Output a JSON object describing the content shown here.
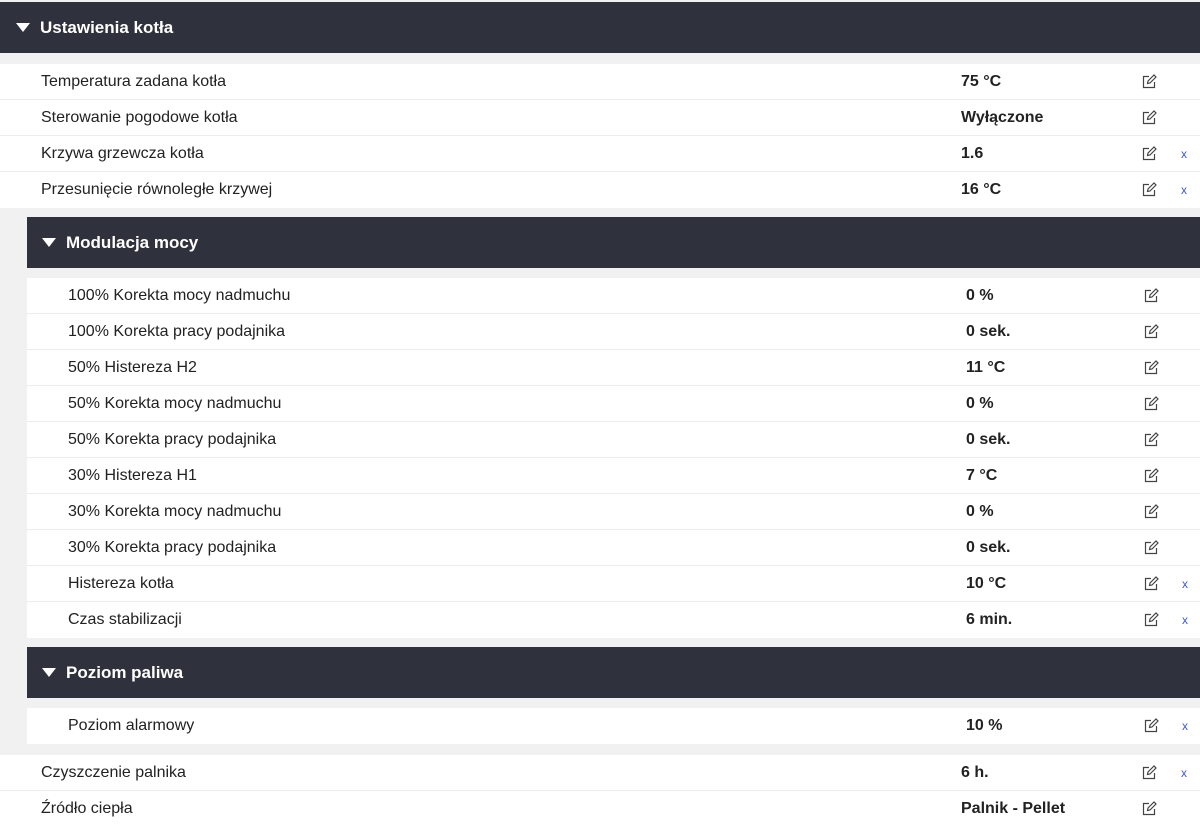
{
  "main_section": {
    "title": "Ustawienia kotła",
    "rows_top": [
      {
        "label": "Temperatura zadana kotła",
        "value": "75 °C",
        "reset": ""
      },
      {
        "label": "Sterowanie pogodowe kotła",
        "value": "Wyłączone",
        "reset": ""
      },
      {
        "label": "Krzywa grzewcza kotła",
        "value": "1.6",
        "reset": "x"
      },
      {
        "label": "Przesunięcie równoległe krzywej",
        "value": "16 °C",
        "reset": "x"
      }
    ],
    "rows_bottom": [
      {
        "label": "Czyszczenie palnika",
        "value": "6 h.",
        "reset": "x"
      },
      {
        "label": "Źródło ciepła",
        "value": "Palnik - Pellet",
        "reset": ""
      }
    ]
  },
  "modulation_section": {
    "title": "Modulacja mocy",
    "rows": [
      {
        "label": "100% Korekta mocy nadmuchu",
        "value": "0 %",
        "reset": ""
      },
      {
        "label": "100% Korekta pracy podajnika",
        "value": "0 sek.",
        "reset": ""
      },
      {
        "label": "50% Histereza H2",
        "value": "11 °C",
        "reset": ""
      },
      {
        "label": "50% Korekta mocy nadmuchu",
        "value": "0 %",
        "reset": ""
      },
      {
        "label": "50% Korekta pracy podajnika",
        "value": "0 sek.",
        "reset": ""
      },
      {
        "label": "30% Histereza H1",
        "value": "7 °C",
        "reset": ""
      },
      {
        "label": "30% Korekta mocy nadmuchu",
        "value": "0 %",
        "reset": ""
      },
      {
        "label": "30% Korekta pracy podajnika",
        "value": "0 sek.",
        "reset": ""
      },
      {
        "label": "Histereza kotła",
        "value": "10 °C",
        "reset": "x"
      },
      {
        "label": "Czas stabilizacji",
        "value": "6 min.",
        "reset": "x"
      }
    ]
  },
  "fuel_section": {
    "title": "Poziom paliwa",
    "rows": [
      {
        "label": "Poziom alarmowy",
        "value": "10 %",
        "reset": "x"
      }
    ]
  },
  "icons": {
    "edit": "edit-icon",
    "collapse": "caret-down-icon"
  },
  "colors": {
    "header_bg": "#2f323c",
    "reset_link": "#3a5bd9"
  }
}
